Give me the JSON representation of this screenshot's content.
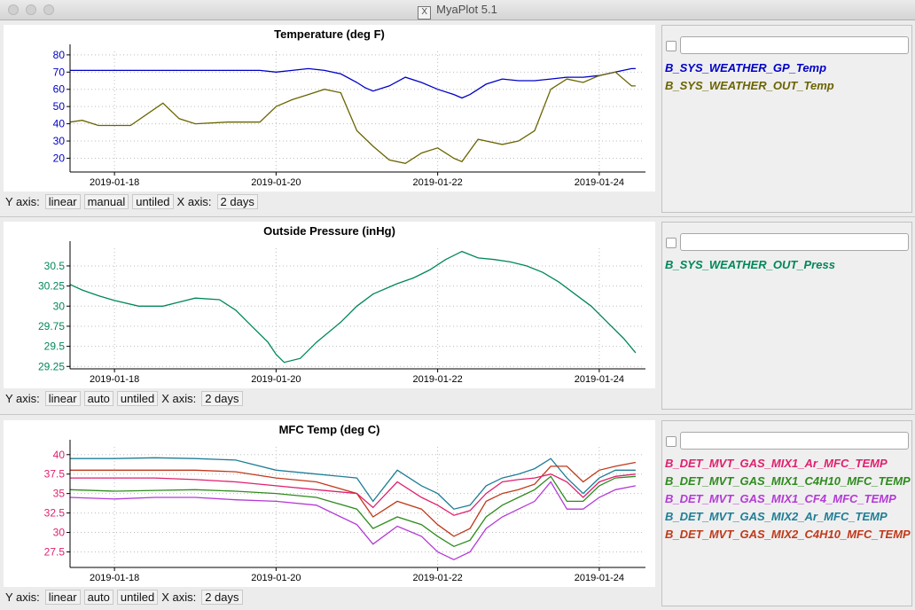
{
  "window": {
    "title": "MyaPlot 5.1"
  },
  "x_tick_labels": [
    "2019-01-18",
    "2019-01-20",
    "2019-01-22",
    "2019-01-24"
  ],
  "panels": [
    {
      "title": "Temperature (deg F)",
      "controls": {
        "y_label": "Y axis:",
        "scale": "linear",
        "mode": "manual",
        "label_mode": "untiled",
        "x_label": "X axis:",
        "x_range": "2 days"
      },
      "legend_filter": "",
      "legend": [
        {
          "name": "B_SYS_WEATHER_GP_Temp",
          "color": "#0000c8"
        },
        {
          "name": "B_SYS_WEATHER_OUT_Temp",
          "color": "#6b6400"
        }
      ]
    },
    {
      "title": "Outside Pressure (inHg)",
      "controls": {
        "y_label": "Y axis:",
        "scale": "linear",
        "mode": "auto",
        "label_mode": "untiled",
        "x_label": "X axis:",
        "x_range": "2 days"
      },
      "legend_filter": "",
      "legend": [
        {
          "name": "B_SYS_WEATHER_OUT_Press",
          "color": "#00875a"
        }
      ]
    },
    {
      "title": "MFC Temp (deg C)",
      "controls": {
        "y_label": "Y axis:",
        "scale": "linear",
        "mode": "auto",
        "label_mode": "untiled",
        "x_label": "X axis:",
        "x_range": "2 days"
      },
      "legend_filter": "",
      "legend": [
        {
          "name": "B_DET_MVT_GAS_MIX1_Ar_MFC_TEMP",
          "color": "#e0206e"
        },
        {
          "name": "B_DET_MVT_GAS_MIX1_C4H10_MFC_TEMP",
          "color": "#2e8b1e"
        },
        {
          "name": "B_DET_MVT_GAS_MIX1_CF4_MFC_TEMP",
          "color": "#b43ad6"
        },
        {
          "name": "B_DET_MVT_GAS_MIX2_Ar_MFC_TEMP",
          "color": "#1f7e96"
        },
        {
          "name": "B_DET_MVT_GAS_MIX2_C4H10_MFC_TEMP",
          "color": "#c0391a"
        }
      ]
    }
  ],
  "chart_data": [
    {
      "type": "line",
      "title": "Temperature (deg F)",
      "x_unit": "day (2019-01-17 = 0)",
      "xlim": [
        0.45,
        7.55
      ],
      "ylim": [
        12,
        82
      ],
      "y_ticks": [
        "20",
        "30",
        "40",
        "50",
        "60",
        "70",
        "80"
      ],
      "y_tick_values": [
        20,
        30,
        40,
        50,
        60,
        70,
        80
      ],
      "y_tick_color": "#0000c8",
      "grid": true,
      "series": [
        {
          "name": "B_SYS_WEATHER_GP_Temp",
          "color": "#0000c8",
          "x": [
            0.45,
            0.8,
            1.2,
            1.6,
            2,
            2.4,
            2.8,
            3,
            3.2,
            3.4,
            3.6,
            3.8,
            4,
            4.1,
            4.2,
            4.4,
            4.6,
            4.8,
            5,
            5.2,
            5.3,
            5.4,
            5.6,
            5.8,
            6,
            6.2,
            6.4,
            6.6,
            6.8,
            7,
            7.2,
            7.4,
            7.45
          ],
          "y": [
            71,
            71,
            71,
            71,
            71,
            71,
            71,
            70,
            71,
            72,
            71,
            69,
            64,
            61,
            59,
            62,
            67,
            64,
            60,
            57,
            55,
            57,
            63,
            66,
            65,
            65,
            66,
            67,
            67,
            68,
            70,
            72,
            72
          ]
        },
        {
          "name": "B_SYS_WEATHER_OUT_Temp",
          "color": "#6b6400",
          "x": [
            0.45,
            0.6,
            0.8,
            1.2,
            1.6,
            1.8,
            2,
            2.4,
            2.8,
            3,
            3.2,
            3.4,
            3.6,
            3.8,
            4,
            4.2,
            4.4,
            4.6,
            4.8,
            5,
            5.2,
            5.3,
            5.5,
            5.8,
            6,
            6.2,
            6.4,
            6.6,
            6.8,
            7,
            7.2,
            7.4,
            7.45
          ],
          "y": [
            41,
            42,
            39,
            39,
            52,
            43,
            40,
            41,
            41,
            50,
            54,
            57,
            60,
            58,
            36,
            27,
            19,
            17,
            23,
            26,
            20,
            18,
            31,
            28,
            30,
            36,
            60,
            66,
            64,
            68,
            70,
            62,
            62
          ]
        }
      ]
    },
    {
      "type": "line",
      "title": "Outside Pressure (inHg)",
      "x_unit": "day (2019-01-17 = 0)",
      "xlim": [
        0.45,
        7.55
      ],
      "ylim": [
        29.22,
        30.72
      ],
      "y_ticks": [
        "29.25",
        "29.5",
        "29.75",
        "30",
        "30.25",
        "30.5"
      ],
      "y_tick_values": [
        29.25,
        29.5,
        29.75,
        30,
        30.25,
        30.5
      ],
      "y_tick_color": "#00875a",
      "grid": true,
      "series": [
        {
          "name": "B_SYS_WEATHER_OUT_Press",
          "color": "#00875a",
          "x": [
            0.45,
            0.6,
            0.8,
            1,
            1.3,
            1.6,
            1.8,
            2,
            2.3,
            2.5,
            2.7,
            2.9,
            3,
            3.1,
            3.3,
            3.5,
            3.8,
            4,
            4.2,
            4.5,
            4.7,
            4.9,
            5.1,
            5.3,
            5.5,
            5.7,
            5.9,
            6.1,
            6.3,
            6.5,
            6.7,
            6.9,
            7.1,
            7.3,
            7.45
          ],
          "y": [
            30.27,
            30.2,
            30.13,
            30.07,
            30,
            30,
            30.05,
            30.1,
            30.08,
            29.95,
            29.75,
            29.55,
            29.4,
            29.3,
            29.35,
            29.55,
            29.8,
            30,
            30.15,
            30.28,
            30.35,
            30.45,
            30.58,
            30.68,
            30.6,
            30.58,
            30.55,
            30.5,
            30.42,
            30.3,
            30.15,
            30,
            29.8,
            29.6,
            29.42
          ]
        }
      ]
    },
    {
      "type": "line",
      "title": "MFC Temp (deg C)",
      "x_unit": "day (2019-01-17 = 0)",
      "xlim": [
        0.45,
        7.55
      ],
      "ylim": [
        25.5,
        41.0
      ],
      "y_ticks": [
        "27.5",
        "30",
        "32.5",
        "35",
        "37.5",
        "40"
      ],
      "y_tick_values": [
        27.5,
        30,
        32.5,
        35,
        37.5,
        40
      ],
      "y_tick_color": "#e0206e",
      "grid": true,
      "series": [
        {
          "name": "B_DET_MVT_GAS_MIX2_Ar_MFC_TEMP",
          "color": "#1f7e96",
          "x": [
            0.45,
            1,
            1.5,
            2,
            2.5,
            3,
            3.5,
            4,
            4.2,
            4.5,
            4.8,
            5,
            5.2,
            5.4,
            5.6,
            5.8,
            6,
            6.2,
            6.4,
            6.6,
            6.8,
            7,
            7.2,
            7.45
          ],
          "y": [
            39.5,
            39.5,
            39.6,
            39.5,
            39.3,
            38,
            37.5,
            37,
            34,
            38,
            36,
            35,
            33,
            33.5,
            36,
            37,
            37.5,
            38.2,
            39.5,
            37,
            35,
            37,
            38,
            38
          ]
        },
        {
          "name": "B_DET_MVT_GAS_MIX2_C4H10_MFC_TEMP",
          "color": "#c0391a",
          "x": [
            0.45,
            1,
            1.5,
            2,
            2.5,
            3,
            3.5,
            4,
            4.2,
            4.5,
            4.8,
            5,
            5.2,
            5.4,
            5.6,
            5.8,
            6,
            6.2,
            6.4,
            6.6,
            6.8,
            7,
            7.2,
            7.45
          ],
          "y": [
            38,
            38,
            38,
            38,
            37.8,
            37,
            36.5,
            35,
            32,
            34,
            33,
            31,
            29.5,
            30.5,
            34,
            35,
            35.5,
            36.2,
            38.5,
            38.5,
            36.5,
            38,
            38.5,
            39
          ]
        },
        {
          "name": "B_DET_MVT_GAS_MIX1_Ar_MFC_TEMP",
          "color": "#e0206e",
          "x": [
            0.45,
            1,
            1.5,
            2,
            2.5,
            3,
            3.5,
            4,
            4.2,
            4.5,
            4.8,
            5,
            5.2,
            5.4,
            5.6,
            5.8,
            6,
            6.2,
            6.4,
            6.6,
            6.8,
            7,
            7.2,
            7.45
          ],
          "y": [
            37,
            37,
            37,
            36.8,
            36.5,
            36,
            35.5,
            35,
            33.2,
            36.5,
            34.5,
            33.5,
            32.2,
            32.8,
            35,
            36.5,
            36.8,
            37,
            37.5,
            36.5,
            34.5,
            36.5,
            37.2,
            37.5
          ]
        },
        {
          "name": "B_DET_MVT_GAS_MIX1_C4H10_MFC_TEMP",
          "color": "#2e8b1e",
          "x": [
            0.45,
            1,
            1.5,
            2,
            2.5,
            3,
            3.5,
            4,
            4.2,
            4.5,
            4.8,
            5,
            5.2,
            5.4,
            5.6,
            5.8,
            6,
            6.2,
            6.4,
            6.6,
            6.8,
            7,
            7.2,
            7.45
          ],
          "y": [
            35.5,
            35.3,
            35.4,
            35.5,
            35.3,
            35,
            34.5,
            33,
            30.5,
            32,
            31,
            29.5,
            28.2,
            29,
            32,
            33.5,
            34.5,
            35.5,
            37.2,
            34,
            34,
            36,
            37,
            37.2
          ]
        },
        {
          "name": "B_DET_MVT_GAS_MIX1_CF4_MFC_TEMP",
          "color": "#b43ad6",
          "x": [
            0.45,
            1,
            1.5,
            2,
            2.5,
            3,
            3.5,
            4,
            4.2,
            4.5,
            4.8,
            5,
            5.2,
            5.4,
            5.6,
            5.8,
            6,
            6.2,
            6.4,
            6.6,
            6.8,
            7,
            7.2,
            7.45
          ],
          "y": [
            34.5,
            34.3,
            34.5,
            34.5,
            34.2,
            34,
            33.5,
            31,
            28.5,
            30.8,
            29.5,
            27.5,
            26.5,
            27.5,
            30.5,
            32,
            33,
            34,
            36.5,
            33,
            33,
            34.5,
            35.5,
            36
          ]
        }
      ]
    }
  ]
}
